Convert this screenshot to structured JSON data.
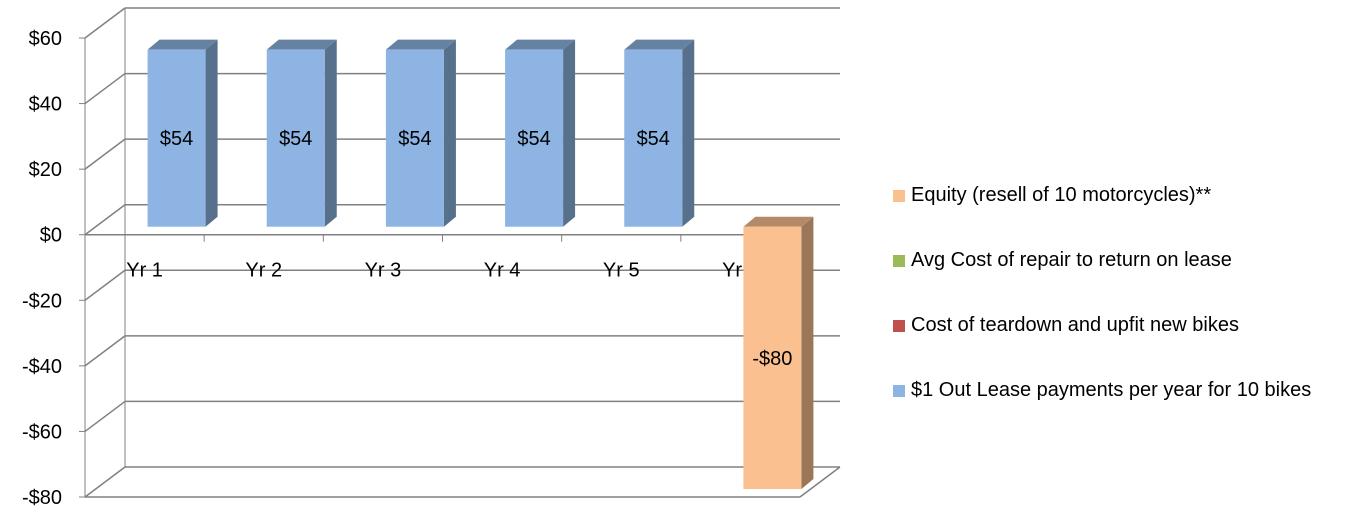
{
  "chart_data": {
    "type": "bar",
    "categories": [
      "Yr 1",
      "Yr 2",
      "Yr 3",
      "Yr 4",
      "Yr 5",
      "Yr 6"
    ],
    "series": [
      {
        "name": "Equity (resell of 10 motorcycles)**",
        "color": "#FAC090",
        "values": [
          null,
          null,
          null,
          null,
          null,
          -80
        ]
      },
      {
        "name": "Avg Cost of repair to return on lease",
        "color": "#9BBB59",
        "values": [
          null,
          null,
          null,
          null,
          null,
          null
        ]
      },
      {
        "name": "Cost of teardown and upfit new bikes",
        "color": "#C0504D",
        "values": [
          null,
          null,
          null,
          null,
          null,
          null
        ]
      },
      {
        "name": "$1 Out Lease payments per year for 10 bikes",
        "color": "#8DB4E2",
        "values": [
          54,
          54,
          54,
          54,
          54,
          null
        ]
      }
    ],
    "data_labels": [
      "$54",
      "$54",
      "$54",
      "$54",
      "$54",
      "-$80"
    ],
    "y_ticks": [
      60,
      40,
      20,
      0,
      -20,
      -40,
      -60,
      -80
    ],
    "y_tick_labels": [
      "$60",
      "$40",
      "$20",
      "$0",
      "-$20",
      "-$40",
      "-$60",
      "-$80"
    ],
    "ylim": [
      -80,
      60
    ],
    "grid": true,
    "legend_position": "right",
    "three_d": true,
    "gridline_color": "#808080"
  },
  "legend": [
    {
      "label": "Equity (resell of 10 motorcycles)**",
      "color": "#FAC090"
    },
    {
      "label": "Avg Cost of repair to return on lease",
      "color": "#9BBB59"
    },
    {
      "label": "Cost of teardown and upfit new bikes",
      "color": "#C0504D"
    },
    {
      "label": "$1 Out Lease payments per year for 10 bikes",
      "color": "#8DB4E2"
    }
  ]
}
